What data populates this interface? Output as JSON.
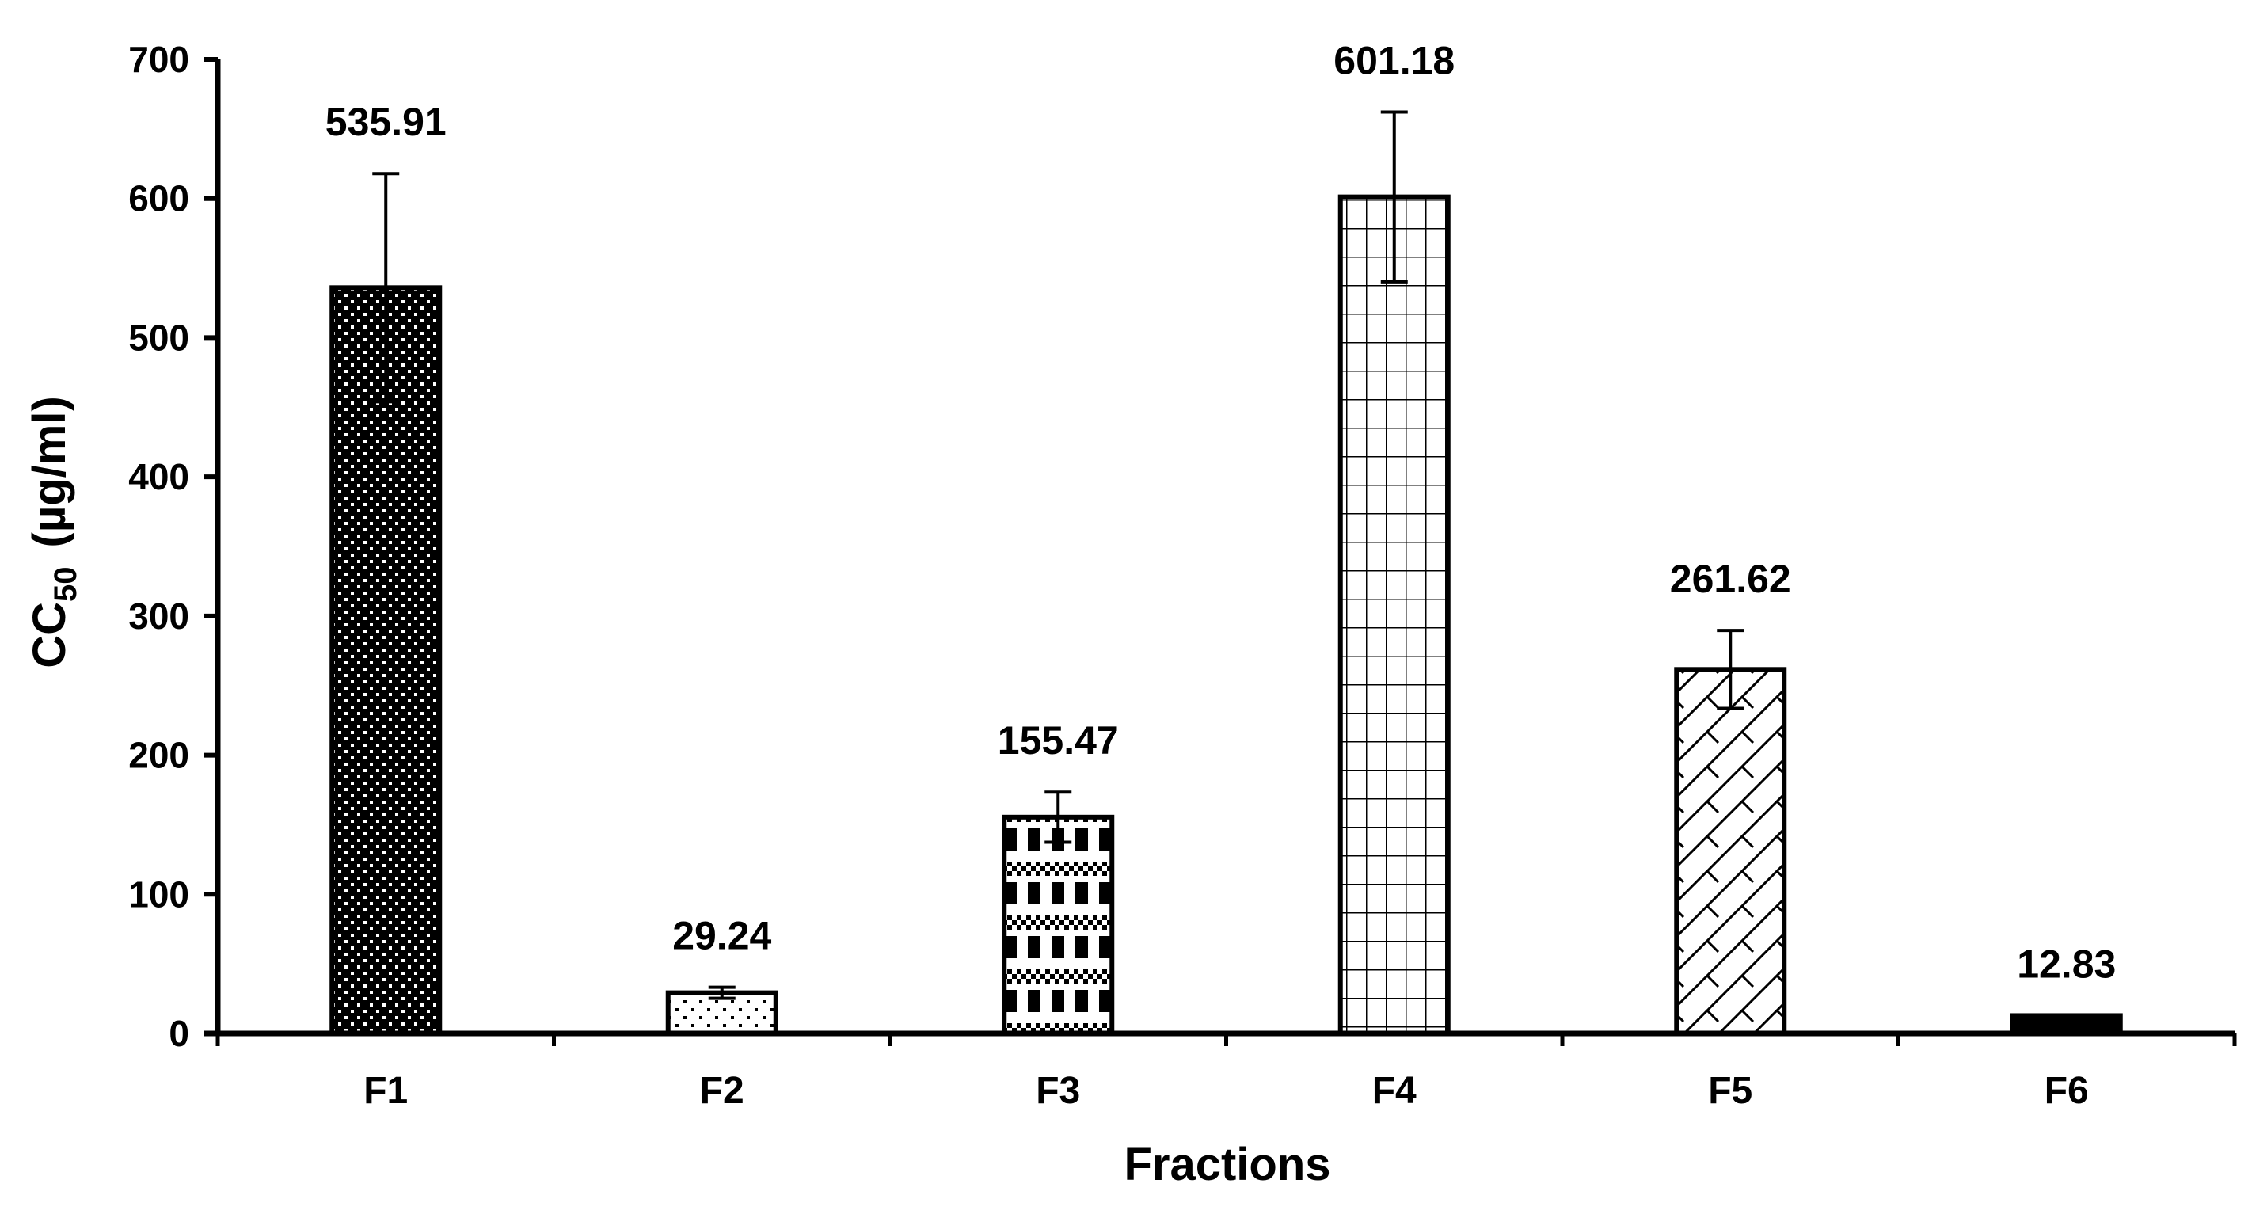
{
  "chart_data": {
    "type": "bar",
    "title": "",
    "xlabel": "Fractions",
    "ylabel": {
      "main": "CC",
      "subscript": "50",
      "unit": "(µg/ml)"
    },
    "categories": [
      "F1",
      "F2",
      "F3",
      "F4",
      "F5",
      "F6"
    ],
    "values": [
      535.91,
      29.24,
      155.47,
      601.18,
      261.62,
      12.83
    ],
    "value_labels": [
      "535.91",
      "29.24",
      "155.47",
      "601.18",
      "261.62",
      "12.83"
    ],
    "error_bars": [
      82,
      4,
      18,
      61,
      28,
      0
    ],
    "patterns": [
      "dark-dots",
      "light-dots",
      "checker-blocks",
      "grid",
      "diagonal-lattice",
      "solid-black"
    ],
    "ylim": [
      0,
      700
    ],
    "yticks": [
      0,
      100,
      200,
      300,
      400,
      500,
      600,
      700
    ],
    "grid": false,
    "legend": "none"
  }
}
